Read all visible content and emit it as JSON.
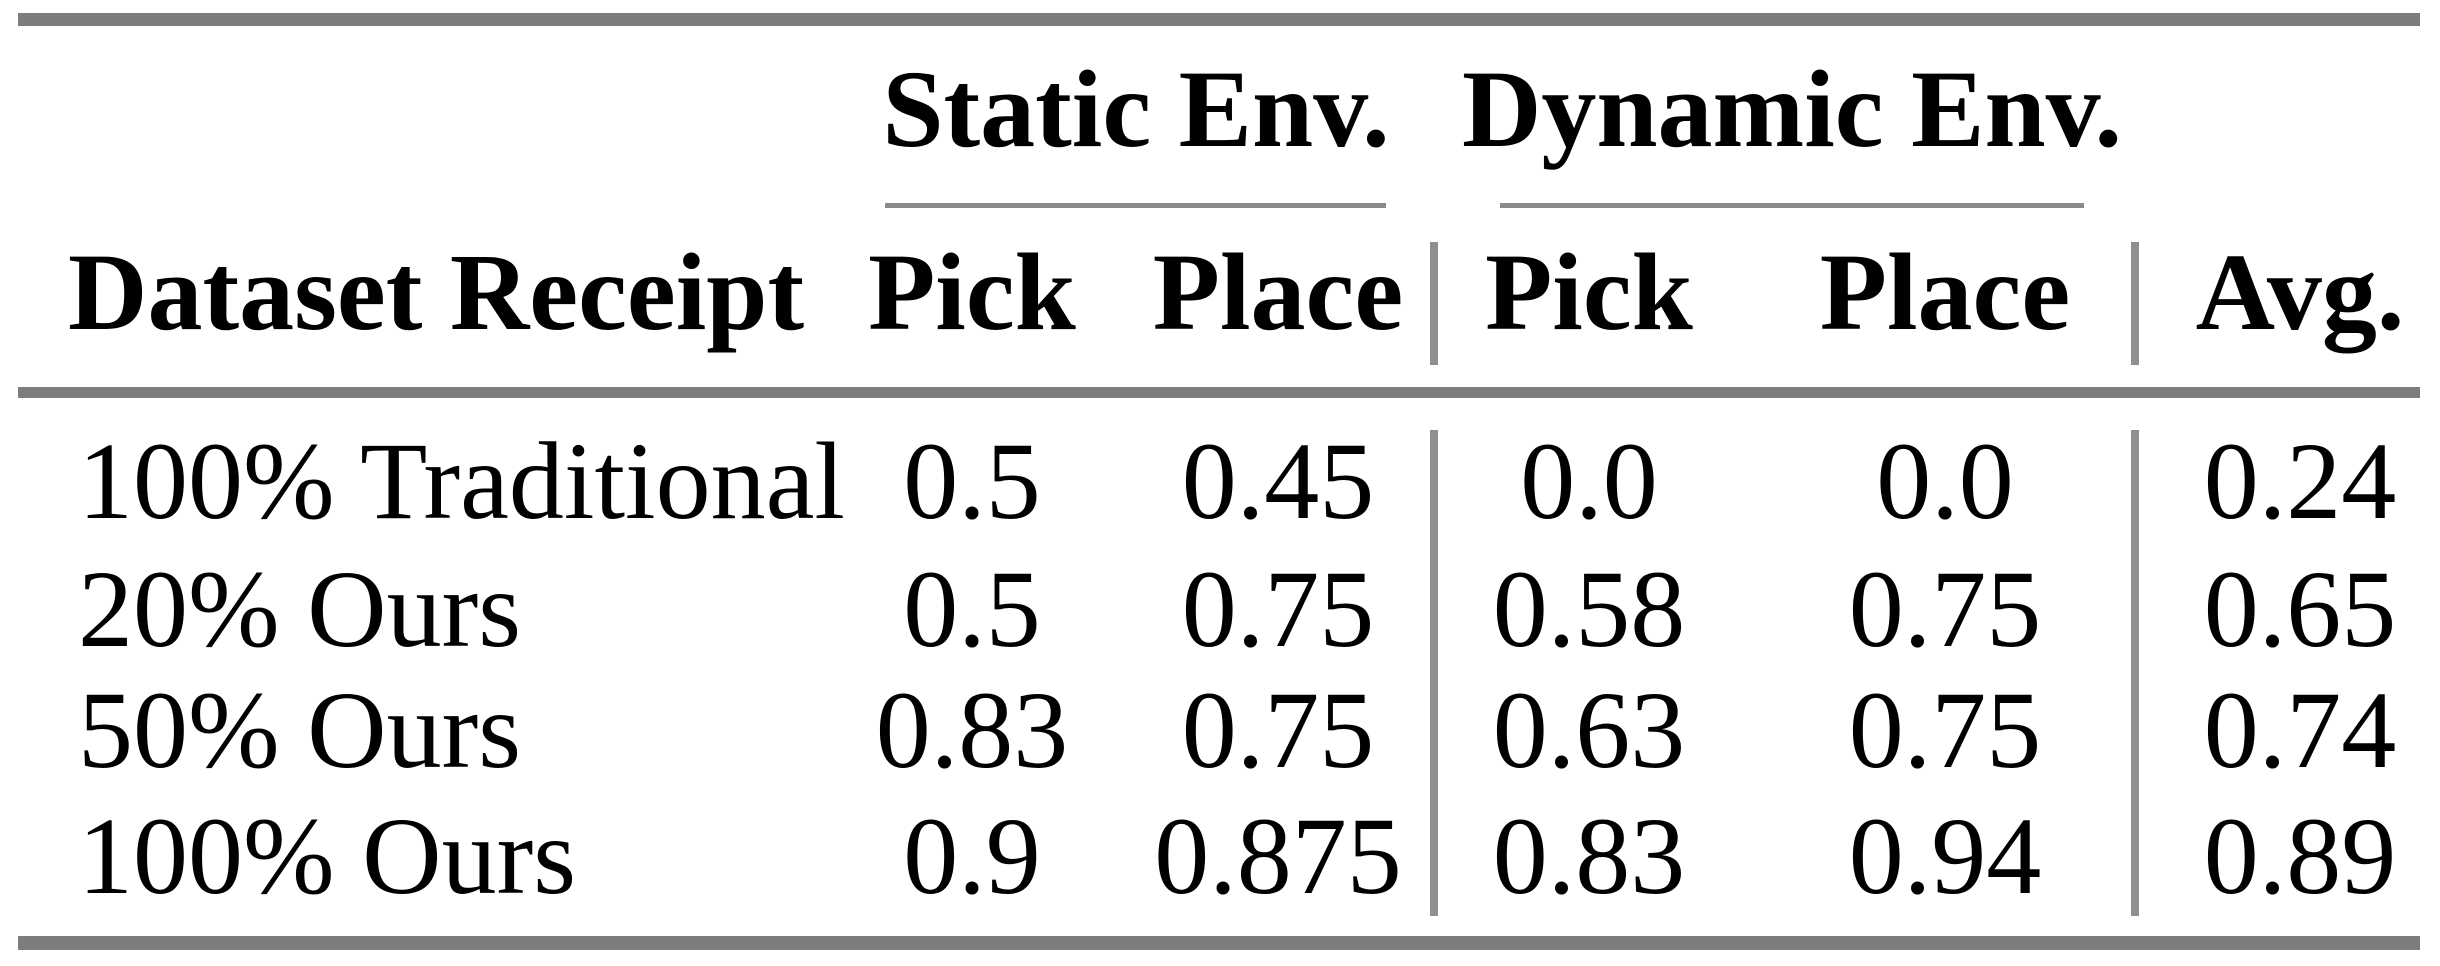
{
  "table": {
    "group_headers": [
      "Static Env.",
      "Dynamic Env."
    ],
    "columns": {
      "row_header": "Dataset Receipt",
      "static_pick": "Pick",
      "static_place": "Place",
      "dynamic_pick": "Pick",
      "dynamic_place": "Place",
      "avg": "Avg."
    },
    "rows": [
      {
        "label": "100% Traditional",
        "static_pick": "0.5",
        "static_place": "0.45",
        "dynamic_pick": "0.0",
        "dynamic_place": "0.0",
        "avg": "0.24"
      },
      {
        "label": "20% Ours",
        "static_pick": "0.5",
        "static_place": "0.75",
        "dynamic_pick": "0.58",
        "dynamic_place": "0.75",
        "avg": "0.65"
      },
      {
        "label": "50% Ours",
        "static_pick": "0.83",
        "static_place": "0.75",
        "dynamic_pick": "0.63",
        "dynamic_place": "0.75",
        "avg": "0.74"
      },
      {
        "label": "100% Ours",
        "static_pick": "0.9",
        "static_place": "0.875",
        "dynamic_pick": "0.83",
        "dynamic_place": "0.94",
        "avg": "0.89"
      }
    ],
    "colors": {
      "rule_gray": "#7d7d7d",
      "divider_gray": "#8f8f8f",
      "underline_gray": "#8a8a8a",
      "text": "#000000",
      "background": "#ffffff"
    }
  }
}
